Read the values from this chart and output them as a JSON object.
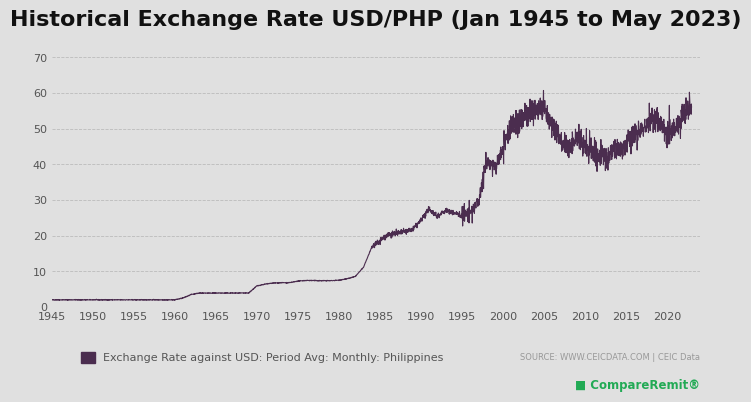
{
  "title": "Historical Exchange Rate USD/PHP (Jan 1945 to May 2023)",
  "legend_label": "Exchange Rate against USD: Period Avg: Monthly: Philippines",
  "source_text": "SOURCE: WWW.CEICDATA.COM | CEIC Data",
  "line_color": "#4B2D4F",
  "background_color": "#E0E0E0",
  "plot_bg_color": "#E0E0E0",
  "ylim": [
    0,
    75
  ],
  "yticks": [
    0,
    10,
    20,
    30,
    40,
    50,
    60,
    70
  ],
  "xlim": [
    1945,
    2024
  ],
  "xticks": [
    1945,
    1950,
    1955,
    1960,
    1965,
    1970,
    1975,
    1980,
    1985,
    1990,
    1995,
    2000,
    2005,
    2010,
    2015,
    2020
  ],
  "grid_color": "#BBBBBB",
  "title_fontsize": 16,
  "years": [
    1945,
    1946,
    1947,
    1948,
    1949,
    1950,
    1951,
    1952,
    1953,
    1954,
    1955,
    1956,
    1957,
    1958,
    1959,
    1960,
    1961,
    1962,
    1963,
    1964,
    1965,
    1966,
    1967,
    1968,
    1969,
    1970,
    1971,
    1972,
    1973,
    1974,
    1975,
    1976,
    1977,
    1978,
    1979,
    1980,
    1981,
    1982,
    1983,
    1984,
    1985,
    1986,
    1987,
    1988,
    1989,
    1990,
    1991,
    1992,
    1993,
    1994,
    1995,
    1996,
    1997,
    1998,
    1999,
    2000,
    2001,
    2002,
    2003,
    2004,
    2005,
    2006,
    2007,
    2008,
    2009,
    2010,
    2011,
    2012,
    2013,
    2014,
    2015,
    2016,
    2017,
    2018,
    2019,
    2020,
    2021,
    2022,
    2023
  ],
  "rates": [
    2.0,
    2.0,
    2.0,
    2.0,
    2.0,
    2.0,
    2.0,
    2.0,
    2.0,
    2.0,
    2.0,
    2.0,
    2.0,
    2.0,
    2.0,
    2.0,
    2.5,
    3.5,
    3.9,
    3.9,
    3.9,
    3.9,
    3.9,
    3.9,
    3.9,
    5.9,
    6.4,
    6.7,
    6.8,
    6.8,
    7.25,
    7.44,
    7.4,
    7.37,
    7.38,
    7.51,
    7.9,
    8.54,
    11.11,
    16.7,
    18.6,
    20.4,
    20.6,
    21.1,
    21.7,
    24.3,
    27.5,
    25.5,
    27.1,
    26.4,
    25.7,
    26.2,
    29.5,
    40.9,
    39.1,
    44.2,
    51.0,
    51.6,
    54.2,
    56.0,
    55.1,
    51.3,
    47.5,
    44.5,
    47.7,
    45.1,
    43.3,
    42.2,
    42.4,
    44.4,
    45.5,
    47.5,
    50.4,
    52.7,
    51.8,
    49.6,
    49.3,
    54.5,
    56.4
  ]
}
